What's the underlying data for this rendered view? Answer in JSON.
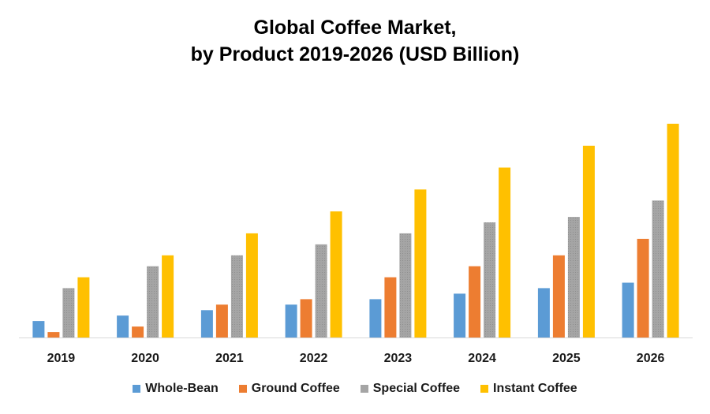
{
  "chart_data": {
    "type": "bar",
    "title_line1": "Global Coffee Market,",
    "title_line2": "by Product 2019-2026 (USD Billion)",
    "xlabel": "",
    "ylabel": "",
    "ylim": [
      0,
      40
    ],
    "grid": false,
    "legend_position": "bottom",
    "categories": [
      "2019",
      "2020",
      "2021",
      "2022",
      "2023",
      "2024",
      "2025",
      "2026"
    ],
    "series": [
      {
        "name": "Whole-Bean",
        "color": "#5b9bd5",
        "values": [
          3,
          4,
          5,
          6,
          7,
          8,
          9,
          10
        ]
      },
      {
        "name": "Ground Coffee",
        "color": "#ed7d31",
        "values": [
          1,
          2,
          6,
          7,
          11,
          13,
          15,
          18
        ]
      },
      {
        "name": "Special Coffee",
        "color": "#a5a5a5",
        "values": [
          9,
          13,
          15,
          17,
          19,
          21,
          22,
          25
        ]
      },
      {
        "name": "Instant Coffee",
        "color": "#ffc000",
        "values": [
          11,
          15,
          19,
          23,
          27,
          31,
          35,
          39
        ]
      }
    ]
  }
}
